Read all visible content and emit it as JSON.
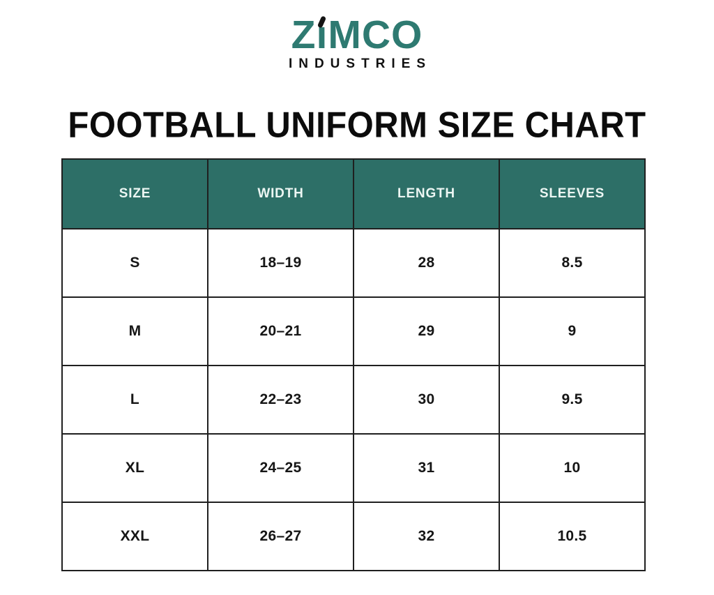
{
  "logo": {
    "text_before_i": "Z",
    "i_stem": "ı",
    "text_after_i": "MCO",
    "subtitle": "INDUSTRIES",
    "brand_color": "#2e7a71",
    "accent_color": "#141414"
  },
  "title": "FOOTBALL UNIFORM SIZE CHART",
  "table": {
    "header_bg": "#2d6f67",
    "header_text_color": "#ecf6f3",
    "border_color": "#1f1f1f",
    "headers": [
      "SIZE",
      "WIDTH",
      "LENGTH",
      "SLEEVES"
    ],
    "rows": [
      [
        "S",
        "18–19",
        "28",
        "8.5"
      ],
      [
        "M",
        "20–21",
        "29",
        "9"
      ],
      [
        "L",
        "22–23",
        "30",
        "9.5"
      ],
      [
        "XL",
        "24–25",
        "31",
        "10"
      ],
      [
        "XXL",
        "26–27",
        "32",
        "10.5"
      ]
    ]
  },
  "chart_data": {
    "type": "table",
    "title": "FOOTBALL UNIFORM SIZE CHART",
    "columns": [
      "SIZE",
      "WIDTH",
      "LENGTH",
      "SLEEVES"
    ],
    "rows": [
      {
        "size": "S",
        "width": "18–19",
        "length": 28,
        "sleeves": 8.5
      },
      {
        "size": "M",
        "width": "20–21",
        "length": 29,
        "sleeves": 9
      },
      {
        "size": "L",
        "width": "22–23",
        "length": 30,
        "sleeves": 9.5
      },
      {
        "size": "XL",
        "width": "24–25",
        "length": 31,
        "sleeves": 10
      },
      {
        "size": "XXL",
        "width": "26–27",
        "length": 32,
        "sleeves": 10.5
      }
    ]
  }
}
